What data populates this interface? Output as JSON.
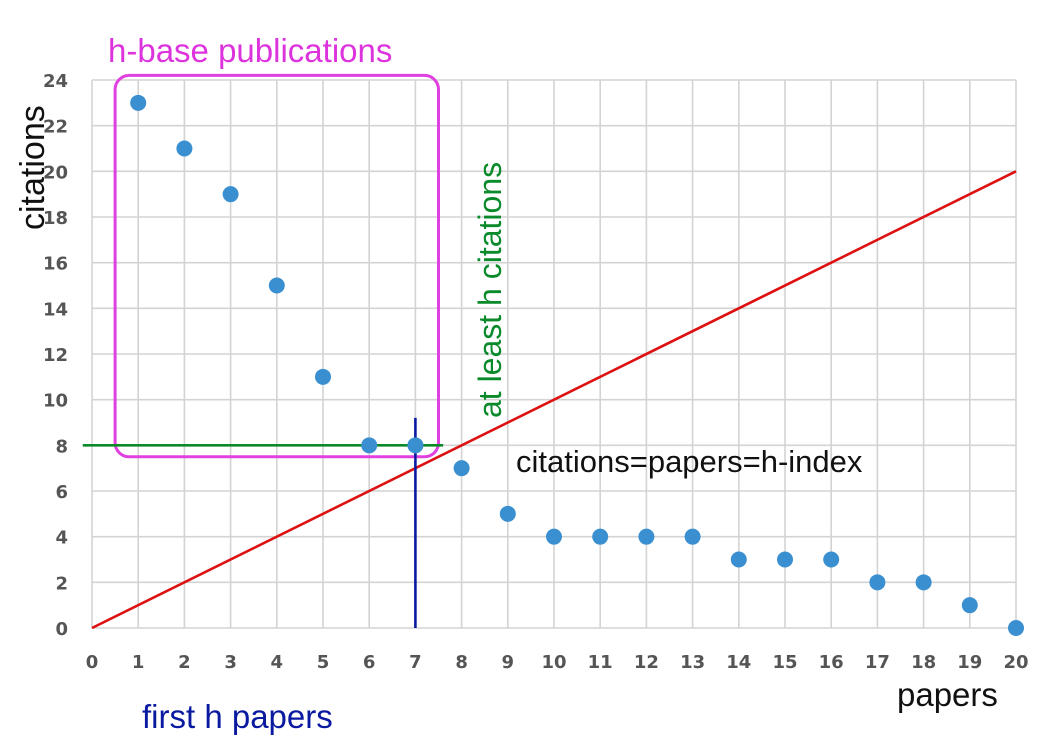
{
  "chart_data": {
    "type": "scatter",
    "xlabel": "papers",
    "ylabel": "citations",
    "xlim": [
      0,
      20
    ],
    "ylim": [
      0,
      24
    ],
    "x_ticks": [
      0,
      1,
      2,
      3,
      4,
      5,
      6,
      7,
      8,
      9,
      10,
      11,
      12,
      13,
      14,
      15,
      16,
      17,
      18,
      19,
      20
    ],
    "y_ticks": [
      0,
      2,
      4,
      6,
      8,
      10,
      12,
      14,
      16,
      18,
      20,
      22,
      24
    ],
    "grid": true,
    "series": [
      {
        "x": [
          1,
          2,
          3,
          4,
          5,
          6,
          7,
          8,
          9,
          10,
          11,
          12,
          13,
          14,
          15,
          16,
          17,
          18,
          19,
          20
        ],
        "y": [
          23,
          21,
          19,
          15,
          11,
          8,
          8,
          7,
          5,
          4,
          4,
          4,
          4,
          3,
          3,
          3,
          2,
          2,
          1,
          0
        ],
        "color": "#3a8fd0"
      }
    ],
    "reference_line": {
      "from": [
        0,
        0
      ],
      "to": [
        20,
        20
      ],
      "color": "#dd1111"
    },
    "h_line": {
      "y": 8,
      "x_from": -0.2,
      "x_to": 7.6,
      "color": "#0a8a2a"
    },
    "v_line": {
      "x": 7,
      "y_from": 0,
      "y_to": 9.2,
      "color": "#0a1aa0"
    },
    "box": {
      "x_from": 0.5,
      "x_to": 7.5,
      "y_from": 7.5,
      "y_to": 24.2,
      "color": "#e040e0"
    },
    "annotations": {
      "box_label": "h-base publications",
      "at_least": "at least h citations",
      "equality": "citations=papers=h-index",
      "first_h": "first h papers"
    },
    "colors": {
      "box": "#dd33dd",
      "at_least": "#0a8a2a",
      "first_h": "#0a1aa0",
      "equality": "#111111"
    }
  }
}
